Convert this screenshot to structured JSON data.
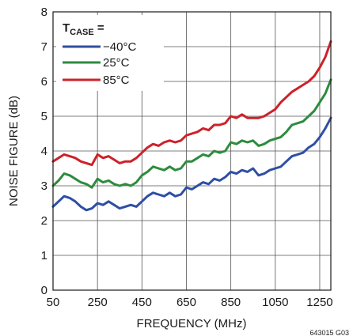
{
  "chart_data": {
    "type": "line",
    "xlabel": "FREQUENCY (MHz)",
    "ylabel": "NOISE FIGURE (dB)",
    "xlim": [
      50,
      1300
    ],
    "ylim": [
      0,
      8
    ],
    "x_ticks": [
      50,
      250,
      450,
      650,
      850,
      1050,
      1250
    ],
    "y_ticks": [
      0,
      1,
      2,
      3,
      4,
      5,
      6,
      7,
      8
    ],
    "grid": true,
    "legend": {
      "title_main": "T",
      "title_sub": "CASE",
      "title_suffix": " =",
      "placement": "top-left"
    },
    "figure_id": "643015 G03",
    "x": [
      50,
      75,
      100,
      125,
      150,
      175,
      200,
      225,
      250,
      275,
      300,
      325,
      350,
      375,
      400,
      425,
      450,
      475,
      500,
      525,
      550,
      575,
      600,
      625,
      650,
      675,
      700,
      725,
      750,
      775,
      800,
      825,
      850,
      875,
      900,
      925,
      950,
      975,
      1000,
      1025,
      1050,
      1075,
      1100,
      1125,
      1150,
      1175,
      1200,
      1225,
      1250,
      1275,
      1300
    ],
    "series": [
      {
        "name": "−40°C",
        "color": "#2e4fa3",
        "values": [
          2.4,
          2.55,
          2.7,
          2.65,
          2.55,
          2.4,
          2.3,
          2.35,
          2.5,
          2.45,
          2.55,
          2.45,
          2.35,
          2.4,
          2.45,
          2.4,
          2.55,
          2.7,
          2.8,
          2.75,
          2.7,
          2.8,
          2.7,
          2.75,
          2.95,
          2.9,
          3.0,
          3.1,
          3.05,
          3.2,
          3.15,
          3.25,
          3.4,
          3.35,
          3.45,
          3.4,
          3.5,
          3.3,
          3.35,
          3.45,
          3.5,
          3.55,
          3.7,
          3.85,
          3.9,
          3.95,
          4.1,
          4.2,
          4.4,
          4.65,
          4.95
        ]
      },
      {
        "name": "25°C",
        "color": "#2e8b3e",
        "values": [
          3.0,
          3.15,
          3.35,
          3.3,
          3.2,
          3.1,
          3.05,
          2.95,
          3.2,
          3.1,
          3.15,
          3.05,
          3.0,
          3.05,
          3.0,
          3.1,
          3.3,
          3.4,
          3.55,
          3.5,
          3.45,
          3.55,
          3.45,
          3.5,
          3.7,
          3.7,
          3.8,
          3.9,
          3.85,
          4.0,
          3.95,
          4.0,
          4.25,
          4.2,
          4.3,
          4.25,
          4.3,
          4.15,
          4.2,
          4.3,
          4.35,
          4.4,
          4.55,
          4.75,
          4.8,
          4.85,
          5.0,
          5.15,
          5.4,
          5.65,
          6.05
        ]
      },
      {
        "name": "85°C",
        "color": "#cc2229",
        "values": [
          3.7,
          3.8,
          3.9,
          3.85,
          3.8,
          3.7,
          3.65,
          3.6,
          3.9,
          3.8,
          3.85,
          3.75,
          3.65,
          3.7,
          3.7,
          3.8,
          3.95,
          4.1,
          4.2,
          4.15,
          4.25,
          4.3,
          4.25,
          4.3,
          4.45,
          4.5,
          4.55,
          4.65,
          4.6,
          4.75,
          4.75,
          4.8,
          5.0,
          4.95,
          5.05,
          4.95,
          4.95,
          4.95,
          5.0,
          5.1,
          5.2,
          5.4,
          5.55,
          5.7,
          5.8,
          5.9,
          6.0,
          6.15,
          6.4,
          6.7,
          7.15
        ]
      }
    ]
  }
}
